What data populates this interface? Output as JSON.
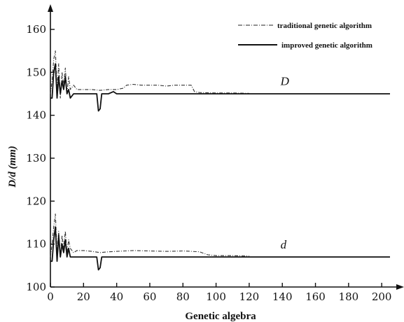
{
  "chart_data": {
    "type": "line",
    "xlabel": "Genetic algebra",
    "ylabel": "D/d (mm)",
    "xlim": [
      0,
      205
    ],
    "ylim": [
      100,
      165
    ],
    "x_ticks": [
      0,
      20,
      40,
      60,
      80,
      100,
      120,
      140,
      160,
      180,
      200
    ],
    "y_ticks": [
      100,
      110,
      120,
      130,
      140,
      150,
      160
    ],
    "grid": false,
    "legend_position": "top-right",
    "legend": [
      {
        "label": "traditional genetic algorithm",
        "style": "dash-dot"
      },
      {
        "label": "improved genetic algorithm",
        "style": "solid"
      }
    ],
    "annotations": [
      {
        "text": "D",
        "x": 122,
        "y": 147
      },
      {
        "text": "d",
        "x": 122,
        "y": 109
      }
    ],
    "series": [
      {
        "name": "traditional genetic algorithm",
        "group": "D",
        "style": "dash-dot",
        "points": [
          [
            0,
            145
          ],
          [
            1,
            148
          ],
          [
            2,
            153
          ],
          [
            3,
            155
          ],
          [
            4,
            146
          ],
          [
            5,
            152
          ],
          [
            6,
            144
          ],
          [
            7,
            150
          ],
          [
            8,
            147
          ],
          [
            9,
            151
          ],
          [
            10,
            145
          ],
          [
            11,
            149
          ],
          [
            12,
            146
          ],
          [
            14,
            147
          ],
          [
            16,
            146
          ],
          [
            20,
            146
          ],
          [
            25,
            146
          ],
          [
            30,
            145.8
          ],
          [
            35,
            146
          ],
          [
            40,
            146
          ],
          [
            44,
            146.3
          ],
          [
            46,
            147
          ],
          [
            50,
            147.2
          ],
          [
            55,
            147
          ],
          [
            60,
            147
          ],
          [
            65,
            147
          ],
          [
            70,
            146.8
          ],
          [
            75,
            147
          ],
          [
            80,
            147
          ],
          [
            85,
            147
          ],
          [
            87,
            145.5
          ],
          [
            90,
            145.3
          ],
          [
            100,
            145.2
          ],
          [
            110,
            145.2
          ],
          [
            120,
            145.1
          ]
        ]
      },
      {
        "name": "improved genetic algorithm",
        "group": "D",
        "style": "solid",
        "points": [
          [
            0,
            144
          ],
          [
            1,
            144
          ],
          [
            2,
            150
          ],
          [
            3,
            152
          ],
          [
            4,
            144
          ],
          [
            5,
            149
          ],
          [
            6,
            145
          ],
          [
            7,
            148
          ],
          [
            8,
            146
          ],
          [
            9,
            149
          ],
          [
            10,
            145
          ],
          [
            11,
            146
          ],
          [
            12,
            144
          ],
          [
            14,
            145
          ],
          [
            18,
            145
          ],
          [
            25,
            145
          ],
          [
            28,
            145
          ],
          [
            29,
            141
          ],
          [
            30,
            141.5
          ],
          [
            31,
            145
          ],
          [
            35,
            145
          ],
          [
            38,
            145.5
          ],
          [
            40,
            145
          ],
          [
            60,
            145
          ],
          [
            80,
            145
          ],
          [
            100,
            145
          ],
          [
            120,
            145
          ],
          [
            140,
            145
          ],
          [
            160,
            145
          ],
          [
            180,
            145
          ],
          [
            200,
            145
          ],
          [
            205,
            145
          ]
        ]
      },
      {
        "name": "traditional genetic algorithm",
        "group": "d",
        "style": "dash-dot",
        "points": [
          [
            0,
            107
          ],
          [
            1,
            110
          ],
          [
            2,
            114
          ],
          [
            3,
            117
          ],
          [
            4,
            108
          ],
          [
            5,
            113
          ],
          [
            6,
            107
          ],
          [
            7,
            112
          ],
          [
            8,
            109
          ],
          [
            9,
            113
          ],
          [
            10,
            108
          ],
          [
            11,
            111
          ],
          [
            12,
            109
          ],
          [
            14,
            108
          ],
          [
            16,
            108.5
          ],
          [
            20,
            108.5
          ],
          [
            25,
            108.3
          ],
          [
            30,
            108
          ],
          [
            35,
            108.2
          ],
          [
            40,
            108.3
          ],
          [
            50,
            108.5
          ],
          [
            60,
            108.4
          ],
          [
            70,
            108.3
          ],
          [
            80,
            108.4
          ],
          [
            90,
            108.2
          ],
          [
            95,
            107.5
          ],
          [
            100,
            107.3
          ],
          [
            110,
            107.3
          ],
          [
            120,
            107.2
          ]
        ]
      },
      {
        "name": "improved genetic algorithm",
        "group": "d",
        "style": "solid",
        "points": [
          [
            0,
            106
          ],
          [
            1,
            106
          ],
          [
            2,
            111
          ],
          [
            3,
            114
          ],
          [
            4,
            106
          ],
          [
            5,
            112
          ],
          [
            6,
            107
          ],
          [
            7,
            110
          ],
          [
            8,
            108
          ],
          [
            9,
            111
          ],
          [
            10,
            107
          ],
          [
            11,
            109
          ],
          [
            12,
            107
          ],
          [
            14,
            107
          ],
          [
            18,
            107
          ],
          [
            25,
            107
          ],
          [
            28,
            107
          ],
          [
            29,
            104
          ],
          [
            30,
            104.5
          ],
          [
            31,
            107
          ],
          [
            35,
            107
          ],
          [
            40,
            107
          ],
          [
            60,
            107
          ],
          [
            80,
            107
          ],
          [
            100,
            107
          ],
          [
            120,
            107
          ],
          [
            140,
            107
          ],
          [
            160,
            107
          ],
          [
            180,
            107
          ],
          [
            200,
            107
          ],
          [
            205,
            107
          ]
        ]
      }
    ]
  }
}
